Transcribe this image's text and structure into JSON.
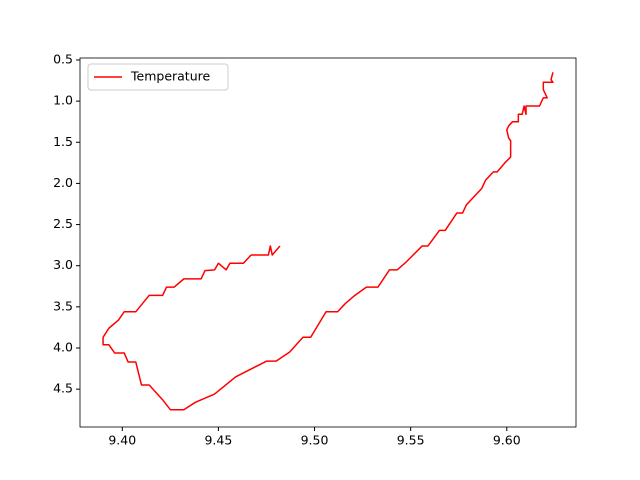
{
  "chart_data": {
    "type": "line",
    "series": [
      {
        "name": "Temperature",
        "color": "#ff0000",
        "x": [
          9.482,
          9.478,
          9.477,
          9.476,
          9.467,
          9.463,
          9.456,
          9.454,
          9.45,
          9.448,
          9.443,
          9.441,
          9.432,
          9.427,
          9.423,
          9.421,
          9.414,
          9.407,
          9.401,
          9.398,
          9.393,
          9.39,
          9.39,
          9.393,
          9.396,
          9.401,
          9.403,
          9.407,
          9.41,
          9.414,
          9.421,
          9.425,
          9.432,
          9.438,
          9.448,
          9.459,
          9.475,
          9.48,
          9.487,
          9.494,
          9.498,
          9.506,
          9.512,
          9.516,
          9.521,
          9.527,
          9.533,
          9.539,
          9.543,
          9.547,
          9.556,
          9.559,
          9.565,
          9.568,
          9.574,
          9.577,
          9.579,
          9.583,
          9.587,
          9.589,
          9.593,
          9.595,
          9.599,
          9.602,
          9.602,
          9.601,
          9.6,
          9.601,
          9.603,
          9.606,
          9.606,
          9.608,
          9.609,
          9.61,
          9.61,
          9.617,
          9.619,
          9.621,
          9.619,
          9.619,
          9.624,
          9.623,
          9.624
        ],
        "y": [
          2.76,
          2.87,
          2.76,
          2.87,
          2.87,
          2.97,
          2.97,
          3.05,
          2.97,
          3.05,
          3.06,
          3.16,
          3.16,
          3.26,
          3.26,
          3.36,
          3.36,
          3.56,
          3.56,
          3.66,
          3.76,
          3.87,
          3.96,
          3.96,
          4.06,
          4.06,
          4.17,
          4.17,
          4.45,
          4.45,
          4.63,
          4.75,
          4.75,
          4.66,
          4.56,
          4.35,
          4.16,
          4.16,
          4.05,
          3.87,
          3.87,
          3.56,
          3.56,
          3.46,
          3.36,
          3.26,
          3.26,
          3.05,
          3.05,
          2.97,
          2.76,
          2.76,
          2.57,
          2.57,
          2.36,
          2.36,
          2.26,
          2.16,
          2.06,
          1.96,
          1.86,
          1.86,
          1.75,
          1.68,
          1.48,
          1.45,
          1.35,
          1.3,
          1.25,
          1.25,
          1.16,
          1.16,
          1.06,
          1.16,
          1.06,
          1.06,
          0.96,
          0.96,
          0.86,
          0.77,
          0.77,
          0.74,
          0.65
        ]
      }
    ],
    "xlim": [
      9.378,
      9.636
    ],
    "ylim": [
      4.96,
      0.476
    ],
    "xticks": [
      {
        "value": 9.4,
        "label": "9.40"
      },
      9.45,
      {
        "value": 9.5,
        "label": "9.50"
      },
      9.55,
      {
        "value": 9.6,
        "label": "9.60"
      }
    ],
    "yticks": [
      0.5,
      {
        "value": 1,
        "label": "1.0"
      },
      1.5,
      {
        "value": 2,
        "label": "2.0"
      },
      2.5,
      {
        "value": 3,
        "label": "3.0"
      },
      3.5,
      {
        "value": 4,
        "label": "4.0"
      },
      4.5
    ],
    "legend": "upper left"
  }
}
